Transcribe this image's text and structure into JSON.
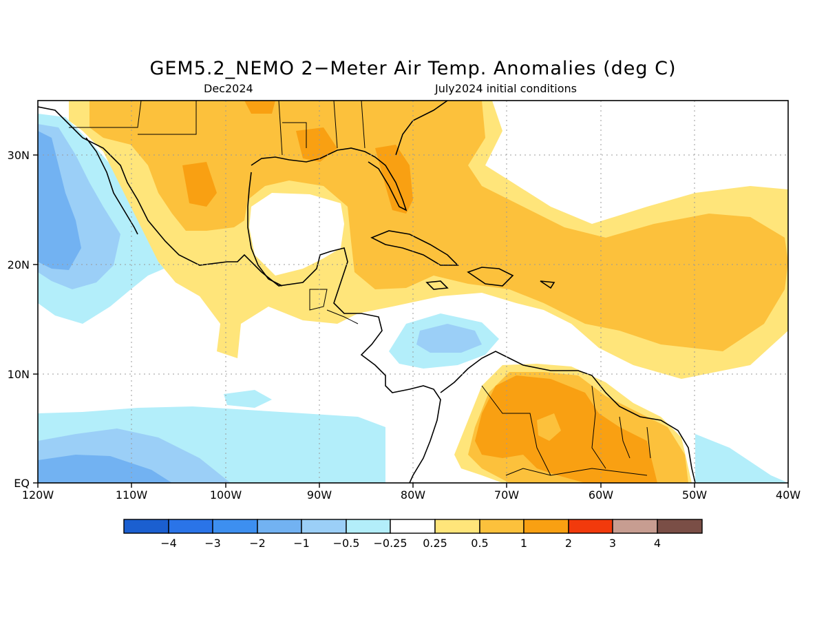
{
  "title": "GEM5.2_NEMO 2−Meter Air Temp. Anomalies (deg C)",
  "subtitle_left": "Dec2024",
  "subtitle_right": "July2024 initial conditions",
  "axes": {
    "x_ticks": [
      "120W",
      "110W",
      "100W",
      "90W",
      "80W",
      "70W",
      "60W",
      "50W",
      "40W"
    ],
    "y_ticks": [
      "EQ",
      "10N",
      "20N",
      "30N"
    ],
    "lon_range": [
      -120,
      -40
    ],
    "lat_range": [
      0,
      35
    ],
    "grid": true
  },
  "colorbar": {
    "labels": [
      "−4",
      "−3",
      "−2",
      "−1",
      "−0.5",
      "−0.25",
      "0.25",
      "0.5",
      "1",
      "2",
      "3",
      "4"
    ],
    "colors": [
      "#1b5fd0",
      "#2a74e8",
      "#3d8ff0",
      "#72b2f2",
      "#9bcff7",
      "#b3eefa",
      "#ffffff",
      "#ffe57a",
      "#fcc13c",
      "#f9a012",
      "#f23a0c",
      "#c79d91",
      "#7a4e46"
    ]
  }
}
